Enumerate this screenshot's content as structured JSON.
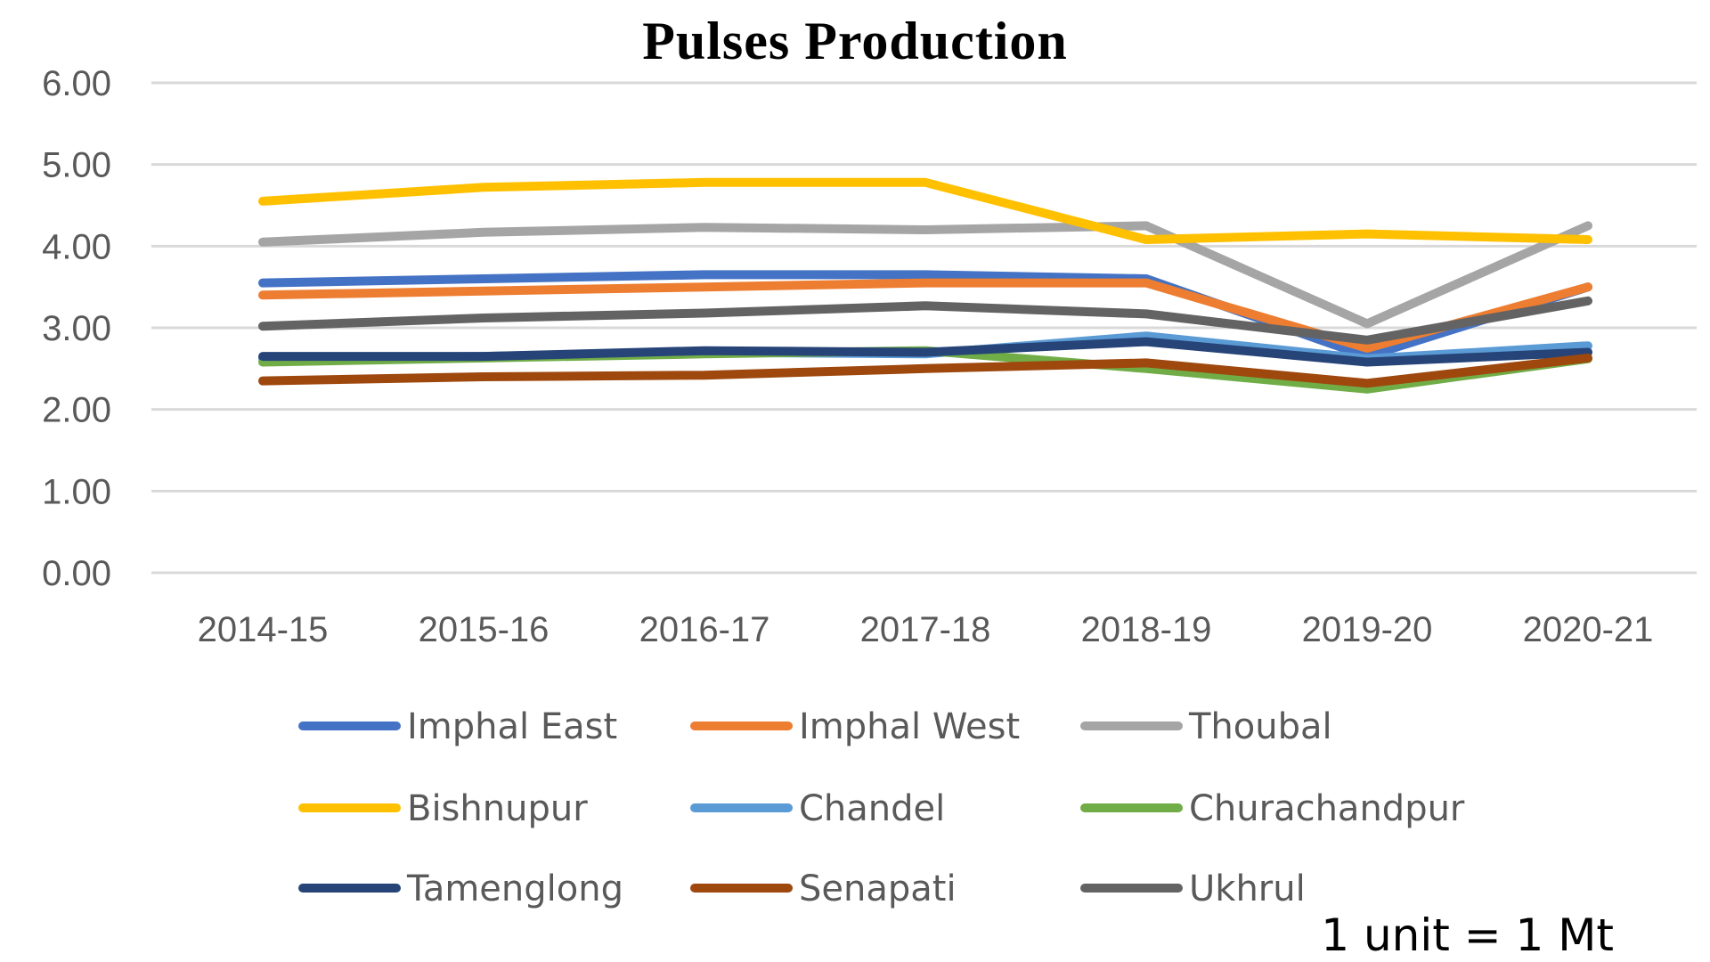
{
  "note": "1 unit = 1 Mt",
  "chart_data": {
    "type": "line",
    "title": "Pulses Production",
    "xlabel": "",
    "ylabel": "",
    "ylim": [
      0,
      6
    ],
    "yticks": [
      "0.00",
      "1.00",
      "2.00",
      "3.00",
      "4.00",
      "5.00",
      "6.00"
    ],
    "categories": [
      "2014-15",
      "2015-16",
      "2016-17",
      "2017-18",
      "2018-19",
      "2019-20",
      "2020-21"
    ],
    "grid": true,
    "legend_position": "bottom",
    "series": [
      {
        "name": "Imphal East",
        "color": "#4472C4",
        "values": [
          3.55,
          3.6,
          3.65,
          3.65,
          3.6,
          2.65,
          3.5
        ]
      },
      {
        "name": "Imphal West",
        "color": "#ED7D31",
        "values": [
          3.4,
          3.45,
          3.5,
          3.55,
          3.55,
          2.75,
          3.5
        ]
      },
      {
        "name": "Thoubal",
        "color": "#A5A5A5",
        "values": [
          4.05,
          4.17,
          4.23,
          4.2,
          4.25,
          3.05,
          4.25
        ]
      },
      {
        "name": "Bishnupur",
        "color": "#FFC000",
        "values": [
          4.55,
          4.72,
          4.78,
          4.78,
          4.08,
          4.15,
          4.08
        ]
      },
      {
        "name": "Chandel",
        "color": "#5B9BD5",
        "values": [
          2.62,
          2.65,
          2.7,
          2.68,
          2.9,
          2.62,
          2.78
        ]
      },
      {
        "name": "Churachandpur",
        "color": "#70AD47",
        "values": [
          2.58,
          2.63,
          2.68,
          2.72,
          2.5,
          2.25,
          2.62
        ]
      },
      {
        "name": "Tamenglong",
        "color": "#264478",
        "values": [
          2.65,
          2.65,
          2.72,
          2.7,
          2.83,
          2.58,
          2.7
        ]
      },
      {
        "name": "Senapati",
        "color": "#9E480E",
        "values": [
          2.35,
          2.4,
          2.42,
          2.5,
          2.57,
          2.32,
          2.63
        ]
      },
      {
        "name": "Ukhrul",
        "color": "#636363",
        "values": [
          3.02,
          3.12,
          3.18,
          3.27,
          3.17,
          2.85,
          3.33
        ]
      }
    ]
  }
}
